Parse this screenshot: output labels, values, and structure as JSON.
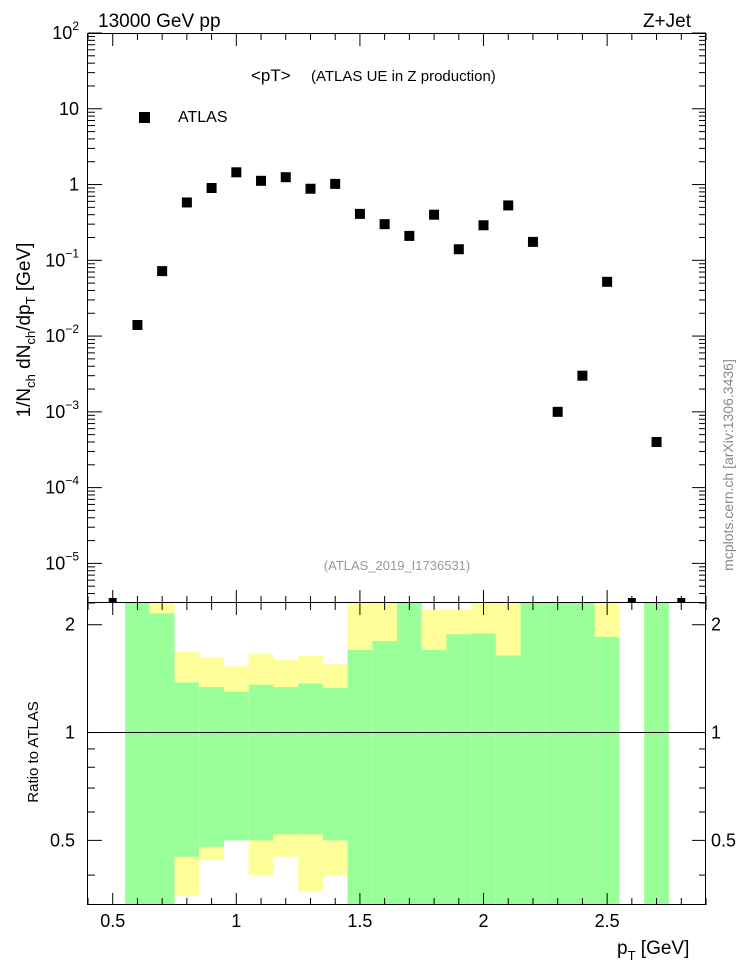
{
  "header": {
    "left": "13000 GeV pp",
    "right": "Z+Jet"
  },
  "title_main": "<pT>",
  "title_sub": "(ATLAS UE in Z production)",
  "legend_label": "ATLAS",
  "analysis_label": "(ATLAS_2019_I1736531)",
  "side_label": "mcplots.cern.ch [arXiv:1306.3436]",
  "colors": {
    "green_band": "#99ff99",
    "yellow_band": "#ffff99",
    "marker": "#000000"
  },
  "chart_data": [
    {
      "type": "scatter",
      "panel": "main",
      "ylabel": "1/N_ch dN_ch/dp_T [GeV]",
      "yscale": "log",
      "xlim": [
        0.4,
        2.9
      ],
      "ylim": [
        3e-06,
        100
      ],
      "y_tick_labels": [
        "10^-5",
        "10^-4",
        "10^-3",
        "10^-2",
        "10^-1",
        "1",
        "10",
        "10^2"
      ],
      "legend": "top-left",
      "series": [
        {
          "name": "ATLAS",
          "x": [
            0.6,
            0.7,
            0.8,
            0.9,
            1.0,
            1.1,
            1.2,
            1.3,
            1.4,
            1.5,
            1.6,
            1.7,
            1.8,
            1.9,
            2.0,
            2.1,
            2.2,
            2.3,
            2.4,
            2.5,
            2.7
          ],
          "y": [
            0.014,
            0.072,
            0.58,
            0.9,
            1.45,
            1.12,
            1.25,
            0.88,
            1.02,
            0.41,
            0.3,
            0.21,
            0.4,
            0.14,
            0.29,
            0.53,
            0.175,
            0.001,
            0.003,
            0.052,
            0.0004
          ]
        }
      ]
    },
    {
      "type": "area",
      "panel": "ratio",
      "xlabel": "p_T [GeV]",
      "ylabel": "Ratio to ATLAS",
      "xlim": [
        0.4,
        2.9
      ],
      "ylim": [
        0.33,
        2.3
      ],
      "x_ticks": [
        0.5,
        1,
        1.5,
        2,
        2.5
      ],
      "x_tick_labels": [
        "0.5",
        "1",
        "1.5",
        "2",
        "2.5"
      ],
      "y_ticks": [
        0.5,
        1,
        2
      ],
      "y_tick_labels": [
        "0.5",
        "1",
        "2"
      ],
      "reference_line": 1,
      "bins": [
        {
          "lo": 0.55,
          "hi": 0.65,
          "g_lo": 0.33,
          "g_hi": 2.3,
          "y_lo": 0.33,
          "y_hi": 2.3
        },
        {
          "lo": 0.65,
          "hi": 0.75,
          "g_lo": 0.33,
          "g_hi": 2.15,
          "y_lo": 0.33,
          "y_hi": 2.3
        },
        {
          "lo": 0.75,
          "hi": 0.85,
          "g_lo": 0.45,
          "g_hi": 1.38,
          "y_lo": 0.35,
          "y_hi": 1.68
        },
        {
          "lo": 0.85,
          "hi": 0.95,
          "g_lo": 0.48,
          "g_hi": 1.34,
          "y_lo": 0.44,
          "y_hi": 1.62
        },
        {
          "lo": 0.95,
          "hi": 1.05,
          "g_lo": 0.5,
          "g_hi": 1.3,
          "y_lo": 0.6,
          "y_hi": 1.53
        },
        {
          "lo": 1.05,
          "hi": 1.15,
          "g_lo": 0.5,
          "g_hi": 1.36,
          "y_lo": 0.4,
          "y_hi": 1.66
        },
        {
          "lo": 1.15,
          "hi": 1.25,
          "g_lo": 0.52,
          "g_hi": 1.34,
          "y_lo": 0.45,
          "y_hi": 1.6
        },
        {
          "lo": 1.25,
          "hi": 1.35,
          "g_lo": 0.52,
          "g_hi": 1.37,
          "y_lo": 0.36,
          "y_hi": 1.64
        },
        {
          "lo": 1.35,
          "hi": 1.45,
          "g_lo": 0.5,
          "g_hi": 1.33,
          "y_lo": 0.4,
          "y_hi": 1.55
        },
        {
          "lo": 1.45,
          "hi": 1.55,
          "g_lo": 0.33,
          "g_hi": 1.7,
          "y_lo": 0.33,
          "y_hi": 2.3
        },
        {
          "lo": 1.55,
          "hi": 1.65,
          "g_lo": 0.33,
          "g_hi": 1.8,
          "y_lo": 0.33,
          "y_hi": 2.3
        },
        {
          "lo": 1.65,
          "hi": 1.75,
          "g_lo": 0.33,
          "g_hi": 2.3,
          "y_lo": 0.33,
          "y_hi": 2.3
        },
        {
          "lo": 1.75,
          "hi": 1.85,
          "g_lo": 0.33,
          "g_hi": 1.7,
          "y_lo": 0.33,
          "y_hi": 2.2
        },
        {
          "lo": 1.85,
          "hi": 1.95,
          "g_lo": 0.33,
          "g_hi": 1.88,
          "y_lo": 0.33,
          "y_hi": 2.2
        },
        {
          "lo": 1.95,
          "hi": 2.05,
          "g_lo": 0.33,
          "g_hi": 1.89,
          "y_lo": 0.33,
          "y_hi": 2.3
        },
        {
          "lo": 2.05,
          "hi": 2.15,
          "g_lo": 0.33,
          "g_hi": 1.64,
          "y_lo": 0.33,
          "y_hi": 2.3
        },
        {
          "lo": 2.15,
          "hi": 2.25,
          "g_lo": 0.33,
          "g_hi": 2.3,
          "y_lo": 0.33,
          "y_hi": 2.3
        },
        {
          "lo": 2.25,
          "hi": 2.35,
          "g_lo": 0.33,
          "g_hi": 2.3,
          "y_lo": 0.33,
          "y_hi": 2.3
        },
        {
          "lo": 2.35,
          "hi": 2.45,
          "g_lo": 0.33,
          "g_hi": 2.3,
          "y_lo": 0.33,
          "y_hi": 2.3
        },
        {
          "lo": 2.45,
          "hi": 2.55,
          "g_lo": 0.33,
          "g_hi": 1.85,
          "y_lo": 0.33,
          "y_hi": 2.3
        },
        {
          "lo": 2.65,
          "hi": 2.75,
          "g_lo": 0.33,
          "g_hi": 2.3,
          "y_lo": 0.33,
          "y_hi": 2.3
        }
      ]
    }
  ]
}
